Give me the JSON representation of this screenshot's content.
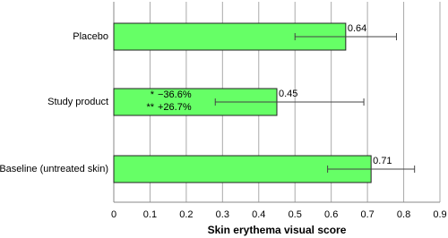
{
  "chart_data": {
    "type": "hbar",
    "x_label": "Skin erythema visual score",
    "categories": [
      "Placebo",
      "Study product",
      "Baseline (untreated skin)"
    ],
    "values": [
      0.64,
      0.45,
      0.71
    ],
    "value_labels": [
      "0.64",
      "0.45",
      "0.71"
    ],
    "error_bars": [
      [
        0.5,
        0.78
      ],
      [
        0.28,
        0.69
      ],
      [
        0.59,
        0.83
      ]
    ],
    "color": "#66ff66",
    "xlim": [
      0,
      0.9
    ],
    "xticks": [
      0,
      0.1,
      0.2,
      0.3,
      0.4,
      0.5,
      0.6,
      0.7,
      0.8,
      0.9
    ],
    "grid": true,
    "annotations": [
      [
        "*",
        "−36.6%"
      ],
      [
        "**",
        "+26.7%"
      ]
    ]
  }
}
